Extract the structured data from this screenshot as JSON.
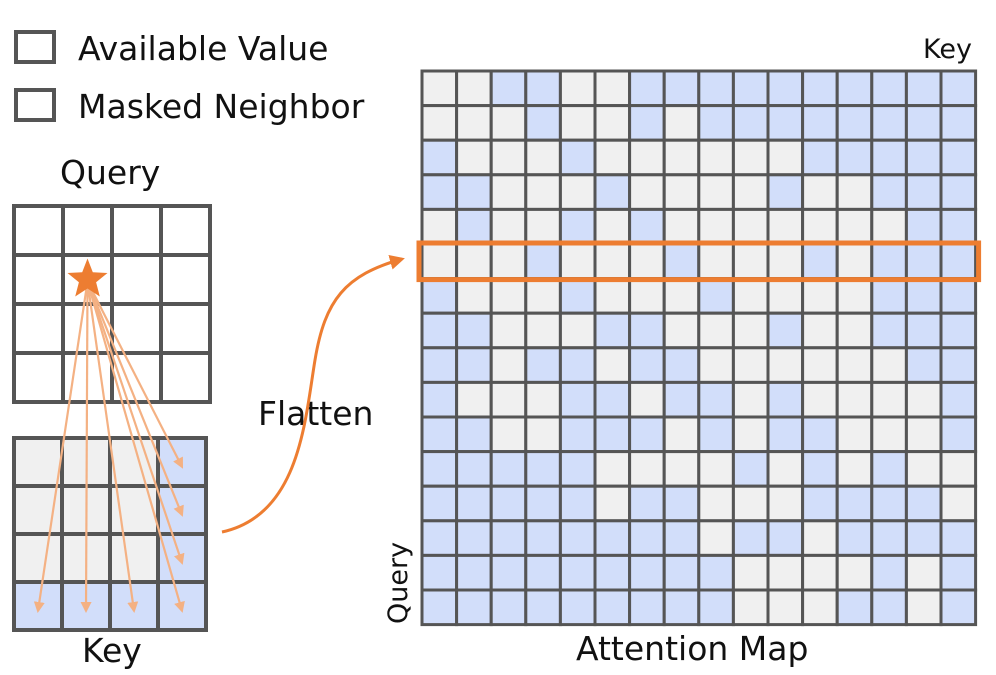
{
  "colors": {
    "available": "#d2defa",
    "masked": "#f0f0f0",
    "query_cell": "#ffffff",
    "grid_line": "#555555",
    "accent": "#ed7d31",
    "arrow": "#f4b183"
  },
  "legend": {
    "available_label": "Available Value",
    "masked_label": "Masked Neighbor"
  },
  "query_grid": {
    "title": "Query",
    "rows": 4,
    "cols": 4,
    "star_cell": [
      1,
      1
    ]
  },
  "key_grid": {
    "title": "Key",
    "rows": 4,
    "cols": 4,
    "cells": [
      [
        0,
        0,
        0,
        1
      ],
      [
        0,
        0,
        0,
        1
      ],
      [
        0,
        0,
        0,
        1
      ],
      [
        1,
        1,
        1,
        1
      ]
    ]
  },
  "flatten_label": "Flatten",
  "attention_map": {
    "title": "Attention Map",
    "key_label": "Key",
    "query_label": "Query",
    "size": 16,
    "highlight_row": 5,
    "rows": [
      "0011001111111111",
      "0001001011111111",
      "1000100000011111",
      "1100010000100111",
      "0100101000000011",
      "0001000100010111",
      "1000100010000111",
      "1100011000100111",
      "1101101100000011",
      "1000110110100001",
      "1100111010110001",
      "1111100001010100",
      "1111101100011110",
      "1111111101101111",
      "1111111110000101",
      "1111111110001101"
    ]
  }
}
